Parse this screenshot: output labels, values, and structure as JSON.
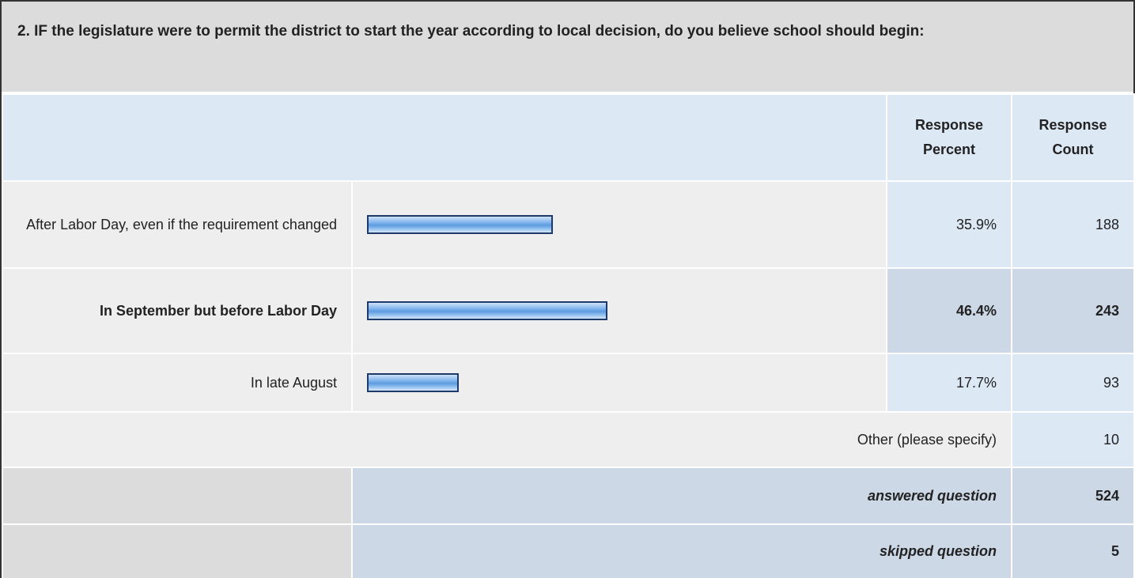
{
  "question": "2. IF the legislature were to permit the district to start the year according to local decision, do you believe school should begin:",
  "header": {
    "percent": "Response Percent",
    "count": "Response Count"
  },
  "rows": [
    {
      "label": "After Labor Day, even if the requirement changed",
      "percent": {
        "value": 35.9,
        "label": "35.9%"
      },
      "count": 188
    },
    {
      "label": "In September but before Labor Day",
      "percent": {
        "value": 46.4,
        "label": "46.4%"
      },
      "count": 243
    },
    {
      "label": "In late August",
      "percent": {
        "value": 17.7,
        "label": "17.7%"
      },
      "count": 93
    }
  ],
  "highlighted_row": 1,
  "other": {
    "label": "Other (please specify)",
    "count": 10
  },
  "answered": {
    "label": "answered question",
    "count": 524
  },
  "skipped": {
    "label": "skipped question",
    "count": 5
  }
}
